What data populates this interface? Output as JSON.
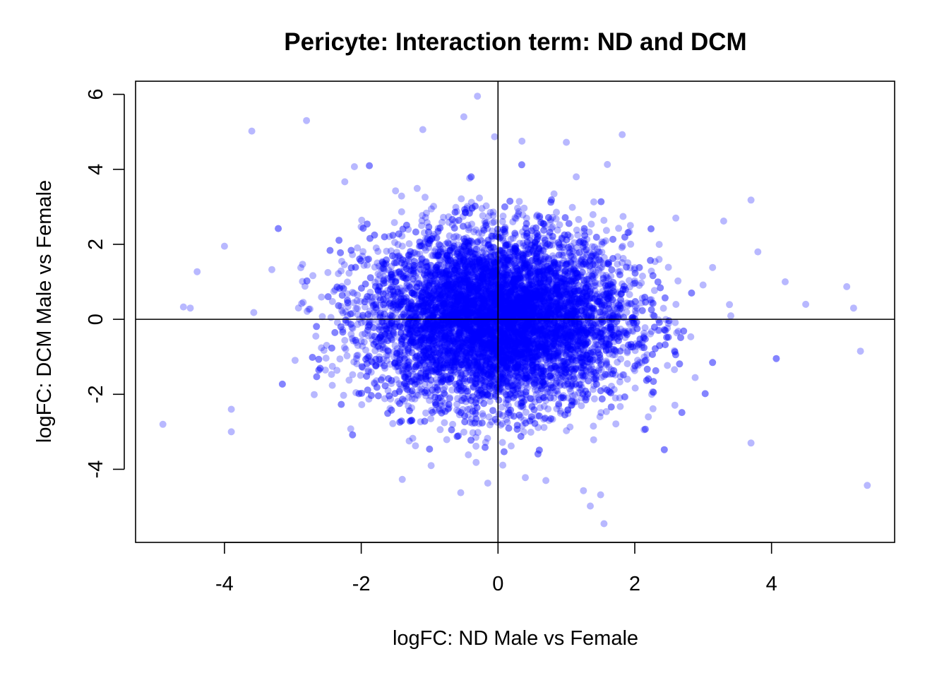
{
  "chart_data": {
    "type": "scatter",
    "title": "Pericyte: Interaction term: ND and DCM",
    "xlabel": "logFC: ND Male vs Female",
    "ylabel": "logFC: DCM Male vs Female",
    "xlim": [
      -5.3,
      5.8
    ],
    "ylim": [
      -5.95,
      6.35
    ],
    "x_ticks": [
      -4,
      -2,
      0,
      2,
      4
    ],
    "y_ticks": [
      -4,
      -2,
      0,
      2,
      4,
      6
    ],
    "reference_lines": {
      "x": 0,
      "y": 0
    },
    "point_color": "#0000ff",
    "point_alpha": 0.28,
    "grid": false,
    "legend": "none",
    "cloud": {
      "n_points": 9000,
      "center": [
        0.0,
        0.0
      ],
      "sd_x": 0.95,
      "sd_y": 1.15
    },
    "points": [
      {
        "x": -0.3,
        "y": 5.95
      },
      {
        "x": -0.5,
        "y": 5.4
      },
      {
        "x": -2.8,
        "y": 5.3
      },
      {
        "x": -3.6,
        "y": 5.02
      },
      {
        "x": -1.1,
        "y": 5.06
      },
      {
        "x": -0.05,
        "y": 4.87
      },
      {
        "x": 0.35,
        "y": 4.75
      },
      {
        "x": 1.0,
        "y": 4.72
      },
      {
        "x": -2.1,
        "y": 4.07
      },
      {
        "x": 1.6,
        "y": 4.13
      },
      {
        "x": -4.9,
        "y": -2.8
      },
      {
        "x": -3.9,
        "y": -2.4
      },
      {
        "x": -3.9,
        "y": -3.0
      },
      {
        "x": -4.0,
        "y": 1.95
      },
      {
        "x": -4.4,
        "y": 1.27
      },
      {
        "x": -4.6,
        "y": 0.33
      },
      {
        "x": -4.5,
        "y": 0.3
      },
      {
        "x": 5.4,
        "y": -4.43
      },
      {
        "x": 5.3,
        "y": -0.85
      },
      {
        "x": 5.1,
        "y": 0.87
      },
      {
        "x": 5.2,
        "y": 0.3
      },
      {
        "x": 3.7,
        "y": 3.18
      },
      {
        "x": 3.8,
        "y": 1.8
      },
      {
        "x": 4.5,
        "y": 0.4
      },
      {
        "x": 4.2,
        "y": 1.0
      },
      {
        "x": 3.7,
        "y": -3.3
      },
      {
        "x": 1.55,
        "y": -5.45
      },
      {
        "x": 1.35,
        "y": -4.98
      },
      {
        "x": 1.5,
        "y": -4.68
      },
      {
        "x": 1.25,
        "y": -4.57
      },
      {
        "x": -0.15,
        "y": -4.37
      },
      {
        "x": 0.4,
        "y": -4.22
      },
      {
        "x": -1.4,
        "y": -4.27
      },
      {
        "x": 0.7,
        "y": -4.3
      },
      {
        "x": 3.3,
        "y": 2.62
      },
      {
        "x": 2.6,
        "y": 2.7
      }
    ]
  }
}
